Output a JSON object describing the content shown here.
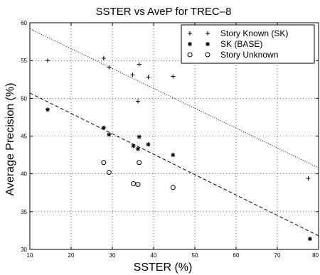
{
  "chart_data": {
    "type": "scatter",
    "title": "SSTER vs AveP for TREC–8",
    "xlabel": "SSTER (%)",
    "ylabel": "Average Precision (%)",
    "xlim": [
      10,
      80
    ],
    "ylim": [
      30,
      60
    ],
    "x_ticks": [
      "10",
      "20",
      "30",
      "40",
      "50",
      "60",
      "70",
      "80"
    ],
    "y_ticks": [
      "30",
      "35",
      "40",
      "45",
      "50",
      "55",
      "60"
    ],
    "grid": true,
    "legend_position": "top-right",
    "series": [
      {
        "name": "Story Known (SK)",
        "marker": "plus",
        "points": [
          {
            "x": 14.3,
            "y": 55.0
          },
          {
            "x": 27.9,
            "y": 55.3
          },
          {
            "x": 29.2,
            "y": 54.1
          },
          {
            "x": 34.9,
            "y": 53.1
          },
          {
            "x": 36.5,
            "y": 54.5
          },
          {
            "x": 38.7,
            "y": 52.8
          },
          {
            "x": 44.7,
            "y": 52.9
          },
          {
            "x": 36.2,
            "y": 49.6
          },
          {
            "x": 77.5,
            "y": 39.4
          }
        ]
      },
      {
        "name": "SK (BASE)",
        "marker": "star",
        "points": [
          {
            "x": 14.3,
            "y": 48.5
          },
          {
            "x": 27.9,
            "y": 46.1
          },
          {
            "x": 29.2,
            "y": 45.2
          },
          {
            "x": 35.1,
            "y": 43.7
          },
          {
            "x": 36.2,
            "y": 43.3
          },
          {
            "x": 36.5,
            "y": 44.9
          },
          {
            "x": 38.7,
            "y": 43.9
          },
          {
            "x": 44.7,
            "y": 42.5
          },
          {
            "x": 77.9,
            "y": 31.4
          }
        ]
      },
      {
        "name": "Story Unknown",
        "marker": "circle",
        "points": [
          {
            "x": 27.9,
            "y": 41.5
          },
          {
            "x": 29.2,
            "y": 40.2
          },
          {
            "x": 35.1,
            "y": 38.7
          },
          {
            "x": 36.2,
            "y": 38.6
          },
          {
            "x": 36.5,
            "y": 41.5
          },
          {
            "x": 44.7,
            "y": 38.2
          }
        ]
      }
    ],
    "fit_lines": [
      {
        "style": "dotted",
        "points": [
          [
            10,
            59.2
          ],
          [
            80,
            40.8
          ]
        ]
      },
      {
        "style": "dashed",
        "points": [
          [
            10,
            50.7
          ],
          [
            80,
            31.8
          ]
        ]
      }
    ]
  }
}
